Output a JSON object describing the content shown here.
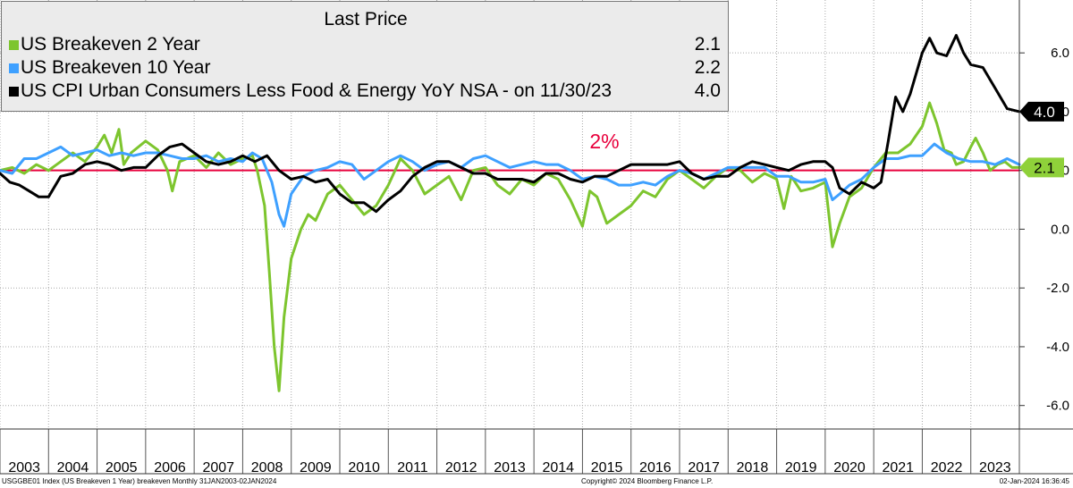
{
  "chart_data": {
    "type": "line",
    "legend": {
      "title": "Last Price",
      "placement": "top-left",
      "entries": [
        {
          "name": "US Breakeven 2 Year",
          "value": "2.1",
          "color": "#7dc52e"
        },
        {
          "name": "US Breakeven 10 Year",
          "value": "2.2",
          "color": "#3ea0ff"
        },
        {
          "name": "US CPI Urban Consumers Less Food & Energy YoY NSA -  on 11/30/23",
          "value": "4.0",
          "color": "#000000"
        }
      ]
    },
    "x_tick_labels": [
      "2003",
      "2004",
      "2005",
      "2006",
      "2007",
      "2008",
      "2009",
      "2010",
      "2011",
      "2012",
      "2013",
      "2014",
      "2015",
      "2016",
      "2017",
      "2018",
      "2019",
      "2020",
      "2021",
      "2022",
      "2023"
    ],
    "y_tick_labels": [
      "6.0",
      "4.0",
      "2.0",
      "0.0",
      "-2.0",
      "-4.0",
      "-6.0"
    ],
    "y_ticks": [
      6,
      4,
      2,
      0,
      -2,
      -4,
      -6
    ],
    "ylim": [
      -6.8,
      7.8
    ],
    "xlim": [
      2003.0,
      2024.0
    ],
    "grid": true,
    "y_axis_side": "right",
    "reference_line": {
      "value": 2.0,
      "label": "2%",
      "color": "#e8003c"
    },
    "last_value_tags": [
      {
        "label": "4.0",
        "value": 4.0,
        "background": "#000000",
        "text_color": "#ffffff"
      },
      {
        "label": "2.1",
        "value": 2.1,
        "background": "#8fd13a",
        "text_color": "#000000"
      }
    ],
    "series": [
      {
        "name": "US Breakeven 2 Year",
        "color": "#7dc52e",
        "points": [
          [
            2003.0,
            2.0
          ],
          [
            2003.25,
            2.1
          ],
          [
            2003.5,
            1.9
          ],
          [
            2003.75,
            2.2
          ],
          [
            2004.0,
            2.0
          ],
          [
            2004.25,
            2.3
          ],
          [
            2004.5,
            2.6
          ],
          [
            2004.75,
            2.3
          ],
          [
            2005.0,
            2.8
          ],
          [
            2005.15,
            3.2
          ],
          [
            2005.3,
            2.6
          ],
          [
            2005.45,
            3.4
          ],
          [
            2005.55,
            2.2
          ],
          [
            2005.7,
            2.6
          ],
          [
            2006.0,
            3.0
          ],
          [
            2006.25,
            2.7
          ],
          [
            2006.45,
            2.0
          ],
          [
            2006.55,
            1.3
          ],
          [
            2006.7,
            2.3
          ],
          [
            2007.0,
            2.5
          ],
          [
            2007.25,
            2.1
          ],
          [
            2007.5,
            2.6
          ],
          [
            2007.75,
            2.2
          ],
          [
            2008.0,
            2.4
          ],
          [
            2008.2,
            2.5
          ],
          [
            2008.3,
            2.0
          ],
          [
            2008.45,
            0.8
          ],
          [
            2008.55,
            -1.5
          ],
          [
            2008.65,
            -4.0
          ],
          [
            2008.75,
            -5.5
          ],
          [
            2008.85,
            -3.0
          ],
          [
            2009.0,
            -1.0
          ],
          [
            2009.2,
            0.0
          ],
          [
            2009.35,
            0.5
          ],
          [
            2009.5,
            0.3
          ],
          [
            2009.75,
            1.2
          ],
          [
            2010.0,
            1.5
          ],
          [
            2010.25,
            1.0
          ],
          [
            2010.5,
            0.5
          ],
          [
            2010.75,
            0.8
          ],
          [
            2011.0,
            1.5
          ],
          [
            2011.25,
            2.4
          ],
          [
            2011.5,
            2.0
          ],
          [
            2011.75,
            1.2
          ],
          [
            2012.0,
            1.5
          ],
          [
            2012.25,
            1.8
          ],
          [
            2012.5,
            1.0
          ],
          [
            2012.75,
            2.0
          ],
          [
            2013.0,
            2.1
          ],
          [
            2013.25,
            1.5
          ],
          [
            2013.5,
            1.2
          ],
          [
            2013.75,
            1.7
          ],
          [
            2014.0,
            1.5
          ],
          [
            2014.25,
            1.9
          ],
          [
            2014.5,
            1.7
          ],
          [
            2014.75,
            1.0
          ],
          [
            2015.0,
            0.1
          ],
          [
            2015.15,
            1.3
          ],
          [
            2015.3,
            1.1
          ],
          [
            2015.5,
            0.2
          ],
          [
            2015.75,
            0.5
          ],
          [
            2016.0,
            0.8
          ],
          [
            2016.25,
            1.3
          ],
          [
            2016.5,
            1.1
          ],
          [
            2016.75,
            1.7
          ],
          [
            2017.0,
            2.0
          ],
          [
            2017.25,
            1.7
          ],
          [
            2017.5,
            1.4
          ],
          [
            2017.75,
            1.8
          ],
          [
            2018.0,
            2.1
          ],
          [
            2018.25,
            2.0
          ],
          [
            2018.5,
            1.6
          ],
          [
            2018.75,
            1.9
          ],
          [
            2019.0,
            1.7
          ],
          [
            2019.15,
            0.7
          ],
          [
            2019.3,
            1.8
          ],
          [
            2019.5,
            1.3
          ],
          [
            2019.75,
            1.4
          ],
          [
            2020.0,
            1.6
          ],
          [
            2020.15,
            -0.6
          ],
          [
            2020.3,
            0.2
          ],
          [
            2020.5,
            1.1
          ],
          [
            2020.75,
            1.4
          ],
          [
            2021.0,
            2.1
          ],
          [
            2021.25,
            2.6
          ],
          [
            2021.5,
            2.6
          ],
          [
            2021.75,
            2.9
          ],
          [
            2022.0,
            3.5
          ],
          [
            2022.15,
            4.3
          ],
          [
            2022.3,
            3.6
          ],
          [
            2022.45,
            2.7
          ],
          [
            2022.6,
            2.6
          ],
          [
            2022.7,
            2.2
          ],
          [
            2022.85,
            2.3
          ],
          [
            2023.0,
            2.8
          ],
          [
            2023.1,
            3.1
          ],
          [
            2023.25,
            2.6
          ],
          [
            2023.4,
            2.0
          ],
          [
            2023.55,
            2.2
          ],
          [
            2023.7,
            2.3
          ],
          [
            2023.85,
            2.1
          ],
          [
            2024.0,
            2.1
          ]
        ]
      },
      {
        "name": "US Breakeven 10 Year",
        "color": "#3ea0ff",
        "points": [
          [
            2003.0,
            2.0
          ],
          [
            2003.25,
            1.9
          ],
          [
            2003.5,
            2.4
          ],
          [
            2003.75,
            2.4
          ],
          [
            2004.0,
            2.6
          ],
          [
            2004.25,
            2.8
          ],
          [
            2004.5,
            2.5
          ],
          [
            2004.75,
            2.6
          ],
          [
            2005.0,
            2.7
          ],
          [
            2005.25,
            2.5
          ],
          [
            2005.5,
            2.6
          ],
          [
            2005.75,
            2.5
          ],
          [
            2006.0,
            2.6
          ],
          [
            2006.25,
            2.6
          ],
          [
            2006.5,
            2.5
          ],
          [
            2006.75,
            2.4
          ],
          [
            2007.0,
            2.4
          ],
          [
            2007.25,
            2.5
          ],
          [
            2007.5,
            2.3
          ],
          [
            2007.75,
            2.4
          ],
          [
            2008.0,
            2.3
          ],
          [
            2008.2,
            2.6
          ],
          [
            2008.4,
            2.4
          ],
          [
            2008.6,
            1.6
          ],
          [
            2008.75,
            0.5
          ],
          [
            2008.85,
            0.1
          ],
          [
            2009.0,
            1.2
          ],
          [
            2009.25,
            1.8
          ],
          [
            2009.5,
            2.0
          ],
          [
            2009.75,
            2.1
          ],
          [
            2010.0,
            2.3
          ],
          [
            2010.25,
            2.2
          ],
          [
            2010.5,
            1.7
          ],
          [
            2010.75,
            2.0
          ],
          [
            2011.0,
            2.3
          ],
          [
            2011.25,
            2.5
          ],
          [
            2011.5,
            2.3
          ],
          [
            2011.75,
            2.0
          ],
          [
            2012.0,
            2.2
          ],
          [
            2012.25,
            2.3
          ],
          [
            2012.5,
            2.1
          ],
          [
            2012.75,
            2.4
          ],
          [
            2013.0,
            2.5
          ],
          [
            2013.25,
            2.3
          ],
          [
            2013.5,
            2.1
          ],
          [
            2013.75,
            2.2
          ],
          [
            2014.0,
            2.3
          ],
          [
            2014.25,
            2.2
          ],
          [
            2014.5,
            2.2
          ],
          [
            2014.75,
            2.0
          ],
          [
            2015.0,
            1.7
          ],
          [
            2015.25,
            1.8
          ],
          [
            2015.5,
            1.7
          ],
          [
            2015.75,
            1.5
          ],
          [
            2016.0,
            1.5
          ],
          [
            2016.25,
            1.6
          ],
          [
            2016.5,
            1.5
          ],
          [
            2016.75,
            1.8
          ],
          [
            2017.0,
            2.0
          ],
          [
            2017.25,
            1.9
          ],
          [
            2017.5,
            1.7
          ],
          [
            2017.75,
            1.9
          ],
          [
            2018.0,
            2.1
          ],
          [
            2018.25,
            2.1
          ],
          [
            2018.5,
            2.1
          ],
          [
            2018.75,
            2.1
          ],
          [
            2019.0,
            1.8
          ],
          [
            2019.25,
            1.8
          ],
          [
            2019.5,
            1.6
          ],
          [
            2019.75,
            1.6
          ],
          [
            2020.0,
            1.7
          ],
          [
            2020.15,
            1.0
          ],
          [
            2020.3,
            1.2
          ],
          [
            2020.5,
            1.5
          ],
          [
            2020.75,
            1.7
          ],
          [
            2021.0,
            2.1
          ],
          [
            2021.25,
            2.4
          ],
          [
            2021.5,
            2.4
          ],
          [
            2021.75,
            2.5
          ],
          [
            2022.0,
            2.5
          ],
          [
            2022.25,
            2.9
          ],
          [
            2022.5,
            2.6
          ],
          [
            2022.75,
            2.4
          ],
          [
            2023.0,
            2.3
          ],
          [
            2023.25,
            2.3
          ],
          [
            2023.5,
            2.2
          ],
          [
            2023.75,
            2.4
          ],
          [
            2024.0,
            2.2
          ]
        ]
      },
      {
        "name": "US CPI Urban Consumers Less Food & Energy YoY NSA -  on 11/30/23",
        "color": "#000000",
        "points": [
          [
            2003.0,
            1.9
          ],
          [
            2003.2,
            1.6
          ],
          [
            2003.4,
            1.5
          ],
          [
            2003.6,
            1.3
          ],
          [
            2003.8,
            1.1
          ],
          [
            2004.0,
            1.1
          ],
          [
            2004.25,
            1.8
          ],
          [
            2004.5,
            1.9
          ],
          [
            2004.75,
            2.2
          ],
          [
            2005.0,
            2.3
          ],
          [
            2005.25,
            2.2
          ],
          [
            2005.5,
            2.0
          ],
          [
            2005.75,
            2.1
          ],
          [
            2006.0,
            2.1
          ],
          [
            2006.25,
            2.5
          ],
          [
            2006.5,
            2.8
          ],
          [
            2006.75,
            2.9
          ],
          [
            2007.0,
            2.6
          ],
          [
            2007.25,
            2.3
          ],
          [
            2007.5,
            2.2
          ],
          [
            2007.75,
            2.3
          ],
          [
            2008.0,
            2.5
          ],
          [
            2008.25,
            2.3
          ],
          [
            2008.5,
            2.5
          ],
          [
            2008.75,
            2.0
          ],
          [
            2009.0,
            1.7
          ],
          [
            2009.25,
            1.8
          ],
          [
            2009.5,
            1.6
          ],
          [
            2009.75,
            1.7
          ],
          [
            2010.0,
            1.2
          ],
          [
            2010.25,
            0.9
          ],
          [
            2010.5,
            0.9
          ],
          [
            2010.75,
            0.6
          ],
          [
            2011.0,
            1.0
          ],
          [
            2011.25,
            1.3
          ],
          [
            2011.5,
            1.8
          ],
          [
            2011.75,
            2.1
          ],
          [
            2012.0,
            2.3
          ],
          [
            2012.25,
            2.3
          ],
          [
            2012.5,
            2.1
          ],
          [
            2012.75,
            1.9
          ],
          [
            2013.0,
            1.9
          ],
          [
            2013.25,
            1.7
          ],
          [
            2013.5,
            1.7
          ],
          [
            2013.75,
            1.7
          ],
          [
            2014.0,
            1.6
          ],
          [
            2014.25,
            1.9
          ],
          [
            2014.5,
            1.9
          ],
          [
            2014.75,
            1.7
          ],
          [
            2015.0,
            1.6
          ],
          [
            2015.25,
            1.8
          ],
          [
            2015.5,
            1.8
          ],
          [
            2015.75,
            2.0
          ],
          [
            2016.0,
            2.2
          ],
          [
            2016.25,
            2.2
          ],
          [
            2016.5,
            2.2
          ],
          [
            2016.75,
            2.2
          ],
          [
            2017.0,
            2.3
          ],
          [
            2017.25,
            1.9
          ],
          [
            2017.5,
            1.7
          ],
          [
            2017.75,
            1.8
          ],
          [
            2018.0,
            1.8
          ],
          [
            2018.25,
            2.1
          ],
          [
            2018.5,
            2.3
          ],
          [
            2018.75,
            2.2
          ],
          [
            2019.0,
            2.1
          ],
          [
            2019.25,
            2.0
          ],
          [
            2019.5,
            2.2
          ],
          [
            2019.75,
            2.3
          ],
          [
            2020.0,
            2.3
          ],
          [
            2020.15,
            2.1
          ],
          [
            2020.3,
            1.4
          ],
          [
            2020.5,
            1.2
          ],
          [
            2020.75,
            1.6
          ],
          [
            2021.0,
            1.4
          ],
          [
            2021.15,
            1.6
          ],
          [
            2021.3,
            3.0
          ],
          [
            2021.45,
            4.5
          ],
          [
            2021.6,
            4.0
          ],
          [
            2021.75,
            4.6
          ],
          [
            2022.0,
            6.0
          ],
          [
            2022.15,
            6.5
          ],
          [
            2022.3,
            6.0
          ],
          [
            2022.5,
            5.9
          ],
          [
            2022.7,
            6.6
          ],
          [
            2022.85,
            6.0
          ],
          [
            2023.0,
            5.6
          ],
          [
            2023.25,
            5.5
          ],
          [
            2023.5,
            4.8
          ],
          [
            2023.75,
            4.1
          ],
          [
            2024.0,
            4.0
          ]
        ]
      }
    ]
  },
  "footer": {
    "left": "USGGBE01 Index (US Breakeven 1 Year) breakeven  Monthly 31JAN2003-02JAN2024",
    "center": "Copyright© 2024 Bloomberg Finance L.P.",
    "right": "02-Jan-2024 16:36:45"
  }
}
